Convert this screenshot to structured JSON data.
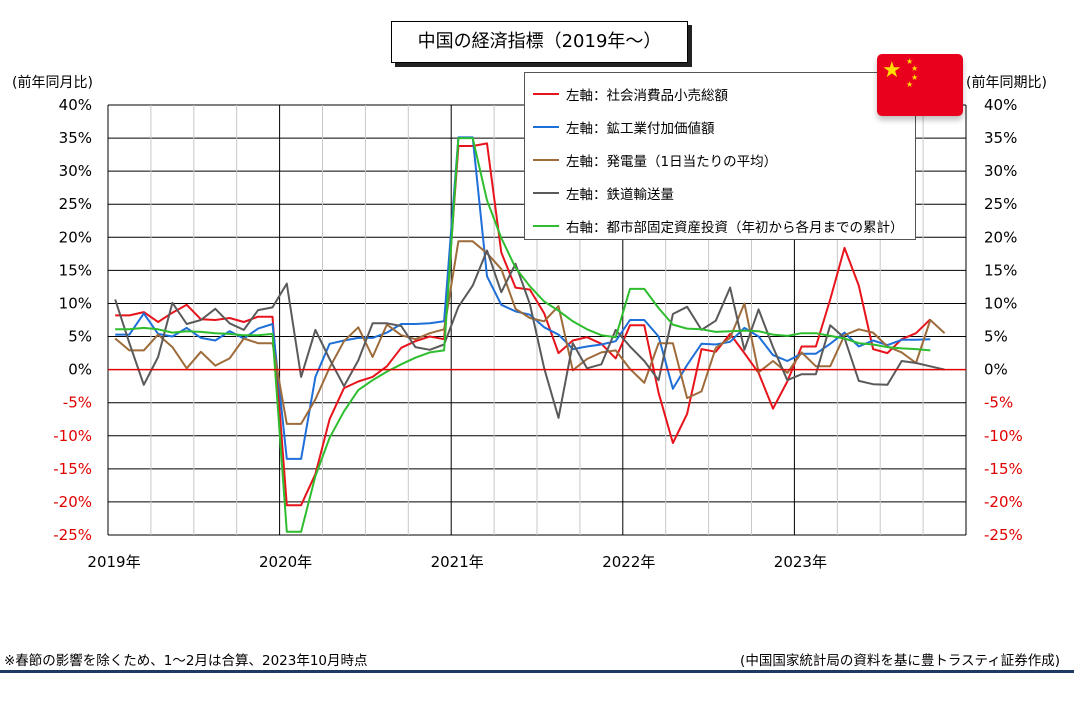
{
  "title": "中国の経済指標（2019年～）",
  "left_axis_unit": "(前年同月比)",
  "right_axis_unit": "(前年同期比)",
  "footnote_left": "※春節の影響を除くため、1～2月は合算、2023年10月時点",
  "footnote_right": "(中国国家統計局の資料を基に豊トラスティ証券作成)",
  "flag_icon": "china-flag-icon",
  "colors": {
    "retail": "#e8141c",
    "industrial": "#1f6fd8",
    "power": "#9e6b3a",
    "rail": "#5a5a5a",
    "fai": "#2ebd2e",
    "zero_line": "#e00000",
    "negative_tick": "#e00000",
    "accent_bar": "#1f3864"
  },
  "chart_data": {
    "type": "line",
    "x_labels": [
      "2019年",
      "2020年",
      "2021年",
      "2022年",
      "2023年"
    ],
    "ylim": [
      -25,
      40
    ],
    "yticks": [
      "40%",
      "35%",
      "30%",
      "25%",
      "20%",
      "15%",
      "10%",
      "5%",
      "0%",
      "-5%",
      "-10%",
      "-15%",
      "-20%",
      "-25%"
    ],
    "ytick_values": [
      40,
      35,
      30,
      25,
      20,
      15,
      10,
      5,
      0,
      -5,
      -10,
      -15,
      -20,
      -25
    ],
    "grid": true,
    "legend_position": "top-right",
    "series": [
      {
        "key": "retail",
        "name": "左軸：社会消費品小売総額",
        "axis": "left",
        "values": [
          [
            0,
            8.2
          ],
          [
            1,
            8.2
          ],
          [
            2,
            8.7
          ],
          [
            3,
            7.2
          ],
          [
            4,
            8.6
          ],
          [
            5,
            9.8
          ],
          [
            6,
            7.6
          ],
          [
            7,
            7.5
          ],
          [
            8,
            7.8
          ],
          [
            9,
            7.2
          ],
          [
            10,
            8.0
          ],
          [
            11,
            8.0
          ],
          [
            12,
            -20.5
          ],
          [
            13,
            -20.5
          ],
          [
            14,
            -15.8
          ],
          [
            15,
            -7.5
          ],
          [
            16,
            -2.8
          ],
          [
            17,
            -1.8
          ],
          [
            18,
            -1.1
          ],
          [
            19,
            0.5
          ],
          [
            20,
            3.3
          ],
          [
            21,
            4.3
          ],
          [
            22,
            5.0
          ],
          [
            23,
            4.6
          ],
          [
            24,
            33.8
          ],
          [
            25,
            33.8
          ],
          [
            26,
            34.2
          ],
          [
            27,
            17.7
          ],
          [
            28,
            12.4
          ],
          [
            29,
            12.1
          ],
          [
            30,
            8.5
          ],
          [
            31,
            2.5
          ],
          [
            32,
            4.4
          ],
          [
            33,
            4.9
          ],
          [
            34,
            3.9
          ],
          [
            35,
            1.7
          ],
          [
            36,
            6.7
          ],
          [
            37,
            6.7
          ],
          [
            38,
            -3.5
          ],
          [
            39,
            -11.1
          ],
          [
            40,
            -6.7
          ],
          [
            41,
            3.1
          ],
          [
            42,
            2.7
          ],
          [
            43,
            5.4
          ],
          [
            44,
            2.5
          ],
          [
            45,
            -0.5
          ],
          [
            46,
            -5.9
          ],
          [
            47,
            -1.8
          ],
          [
            48,
            3.5
          ],
          [
            49,
            3.5
          ],
          [
            50,
            10.6
          ],
          [
            51,
            18.4
          ],
          [
            52,
            12.7
          ],
          [
            53,
            3.1
          ],
          [
            54,
            2.5
          ],
          [
            55,
            4.6
          ],
          [
            56,
            5.5
          ],
          [
            57,
            7.6
          ]
        ]
      },
      {
        "key": "industrial",
        "name": "左軸：鉱工業付加価値額",
        "axis": "left",
        "values": [
          [
            0,
            5.3
          ],
          [
            1,
            5.3
          ],
          [
            2,
            8.5
          ],
          [
            3,
            5.4
          ],
          [
            4,
            5.0
          ],
          [
            5,
            6.3
          ],
          [
            6,
            4.8
          ],
          [
            7,
            4.4
          ],
          [
            8,
            5.8
          ],
          [
            9,
            4.7
          ],
          [
            10,
            6.2
          ],
          [
            11,
            6.9
          ],
          [
            12,
            -13.5
          ],
          [
            13,
            -13.5
          ],
          [
            14,
            -1.1
          ],
          [
            15,
            3.9
          ],
          [
            16,
            4.4
          ],
          [
            17,
            4.8
          ],
          [
            18,
            4.8
          ],
          [
            19,
            5.6
          ],
          [
            20,
            6.9
          ],
          [
            21,
            6.9
          ],
          [
            22,
            7.0
          ],
          [
            23,
            7.3
          ],
          [
            24,
            35.1
          ],
          [
            25,
            35.1
          ],
          [
            26,
            14.1
          ],
          [
            27,
            9.8
          ],
          [
            28,
            8.8
          ],
          [
            29,
            8.3
          ],
          [
            30,
            6.4
          ],
          [
            31,
            5.3
          ],
          [
            32,
            3.1
          ],
          [
            33,
            3.5
          ],
          [
            34,
            3.8
          ],
          [
            35,
            4.3
          ],
          [
            36,
            7.5
          ],
          [
            37,
            7.5
          ],
          [
            38,
            5.0
          ],
          [
            39,
            -2.9
          ],
          [
            40,
            0.7
          ],
          [
            41,
            3.9
          ],
          [
            42,
            3.8
          ],
          [
            43,
            4.2
          ],
          [
            44,
            6.3
          ],
          [
            45,
            5.0
          ],
          [
            46,
            2.2
          ],
          [
            47,
            1.3
          ],
          [
            48,
            2.4
          ],
          [
            49,
            2.4
          ],
          [
            50,
            3.9
          ],
          [
            51,
            5.6
          ],
          [
            52,
            3.5
          ],
          [
            53,
            4.4
          ],
          [
            54,
            3.7
          ],
          [
            55,
            4.5
          ],
          [
            56,
            4.5
          ],
          [
            57,
            4.6
          ]
        ]
      },
      {
        "key": "power",
        "name": "左軸：発電量（1日当たりの平均）",
        "axis": "left",
        "values": [
          [
            0,
            4.7
          ],
          [
            1,
            2.9
          ],
          [
            2,
            2.9
          ],
          [
            3,
            5.3
          ],
          [
            4,
            3.4
          ],
          [
            5,
            0.2
          ],
          [
            6,
            2.7
          ],
          [
            7,
            0.6
          ],
          [
            8,
            1.7
          ],
          [
            9,
            4.7
          ],
          [
            10,
            4.0
          ],
          [
            11,
            4.0
          ],
          [
            12,
            -8.2
          ],
          [
            13,
            -8.2
          ],
          [
            14,
            -4.5
          ],
          [
            15,
            0.3
          ],
          [
            16,
            4.3
          ],
          [
            17,
            6.4
          ],
          [
            18,
            1.9
          ],
          [
            19,
            6.8
          ],
          [
            20,
            5.2
          ],
          [
            21,
            4.6
          ],
          [
            22,
            5.5
          ],
          [
            23,
            6.1
          ],
          [
            24,
            19.4
          ],
          [
            25,
            19.4
          ],
          [
            26,
            17.6
          ],
          [
            27,
            15.2
          ],
          [
            28,
            9.2
          ],
          [
            29,
            7.8
          ],
          [
            30,
            7.3
          ],
          [
            31,
            9.6
          ],
          [
            32,
            -0.1
          ],
          [
            33,
            1.6
          ],
          [
            34,
            2.6
          ],
          [
            35,
            2.9
          ],
          [
            36,
            0.1
          ],
          [
            37,
            -2.0
          ],
          [
            38,
            4.0
          ],
          [
            39,
            4.0
          ],
          [
            40,
            -4.3
          ],
          [
            41,
            -3.3
          ],
          [
            42,
            3.3
          ],
          [
            43,
            4.8
          ],
          [
            44,
            10.0
          ],
          [
            45,
            -0.4
          ],
          [
            46,
            1.3
          ],
          [
            47,
            -0.5
          ],
          [
            48,
            2.6
          ],
          [
            49,
            0.5
          ],
          [
            50,
            0.5
          ],
          [
            51,
            5.2
          ],
          [
            52,
            6.1
          ],
          [
            53,
            5.6
          ],
          [
            54,
            3.5
          ],
          [
            55,
            2.6
          ],
          [
            56,
            1.0
          ],
          [
            57,
            7.5
          ],
          [
            58,
            5.5
          ]
        ]
      },
      {
        "key": "rail",
        "name": "左軸：鉄道輸送量",
        "axis": "left",
        "values": [
          [
            0,
            10.6
          ],
          [
            1,
            4.0
          ],
          [
            2,
            -2.3
          ],
          [
            3,
            1.9
          ],
          [
            4,
            10.1
          ],
          [
            5,
            6.9
          ],
          [
            6,
            7.5
          ],
          [
            7,
            9.2
          ],
          [
            8,
            7.0
          ],
          [
            9,
            6.0
          ],
          [
            10,
            9.0
          ],
          [
            11,
            9.4
          ],
          [
            12,
            13.0
          ],
          [
            13,
            -1.1
          ],
          [
            14,
            6.0
          ],
          [
            15,
            1.6
          ],
          [
            16,
            -2.5
          ],
          [
            17,
            1.4
          ],
          [
            18,
            7.0
          ],
          [
            19,
            7.0
          ],
          [
            20,
            6.6
          ],
          [
            21,
            3.4
          ],
          [
            22,
            3.0
          ],
          [
            23,
            3.8
          ],
          [
            24,
            9.5
          ],
          [
            25,
            12.7
          ],
          [
            26,
            18.0
          ],
          [
            27,
            11.7
          ],
          [
            28,
            16.0
          ],
          [
            29,
            9.9
          ],
          [
            30,
            0.2
          ],
          [
            31,
            -7.3
          ],
          [
            32,
            4.0
          ],
          [
            33,
            0.2
          ],
          [
            34,
            0.8
          ],
          [
            35,
            6.0
          ],
          [
            36,
            3.5
          ],
          [
            37,
            1.3
          ],
          [
            38,
            -1.6
          ],
          [
            39,
            8.4
          ],
          [
            40,
            9.5
          ],
          [
            41,
            6.0
          ],
          [
            42,
            7.4
          ],
          [
            43,
            12.4
          ],
          [
            44,
            3.0
          ],
          [
            45,
            9.1
          ],
          [
            46,
            3.4
          ],
          [
            47,
            -1.6
          ],
          [
            48,
            -0.7
          ],
          [
            49,
            -0.7
          ],
          [
            50,
            6.7
          ],
          [
            51,
            4.8
          ],
          [
            52,
            -1.7
          ],
          [
            53,
            -2.2
          ],
          [
            54,
            -2.3
          ],
          [
            55,
            1.3
          ],
          [
            56,
            1.0
          ],
          [
            57,
            0.5
          ],
          [
            58,
            0.0
          ]
        ]
      },
      {
        "key": "fai",
        "name": "右軸：都市部固定資産投資（年初から各月までの累計）",
        "axis": "right",
        "values": [
          [
            0,
            6.1
          ],
          [
            1,
            6.1
          ],
          [
            2,
            6.3
          ],
          [
            3,
            6.1
          ],
          [
            4,
            5.6
          ],
          [
            5,
            5.8
          ],
          [
            6,
            5.7
          ],
          [
            7,
            5.5
          ],
          [
            8,
            5.4
          ],
          [
            9,
            5.2
          ],
          [
            10,
            5.2
          ],
          [
            11,
            5.4
          ],
          [
            12,
            -24.5
          ],
          [
            13,
            -24.5
          ],
          [
            14,
            -16.1
          ],
          [
            15,
            -10.3
          ],
          [
            16,
            -6.3
          ],
          [
            17,
            -3.1
          ],
          [
            18,
            -1.6
          ],
          [
            19,
            -0.3
          ],
          [
            20,
            0.8
          ],
          [
            21,
            1.8
          ],
          [
            22,
            2.6
          ],
          [
            23,
            2.9
          ],
          [
            24,
            35.0
          ],
          [
            25,
            35.0
          ],
          [
            26,
            25.6
          ],
          [
            27,
            19.9
          ],
          [
            28,
            15.4
          ],
          [
            29,
            12.6
          ],
          [
            30,
            10.3
          ],
          [
            31,
            8.9
          ],
          [
            32,
            7.3
          ],
          [
            33,
            6.1
          ],
          [
            34,
            5.2
          ],
          [
            35,
            4.9
          ],
          [
            36,
            12.2
          ],
          [
            37,
            12.2
          ],
          [
            38,
            9.3
          ],
          [
            39,
            6.8
          ],
          [
            40,
            6.2
          ],
          [
            41,
            6.1
          ],
          [
            42,
            5.7
          ],
          [
            43,
            5.8
          ],
          [
            44,
            5.9
          ],
          [
            45,
            5.8
          ],
          [
            46,
            5.3
          ],
          [
            47,
            5.1
          ],
          [
            48,
            5.5
          ],
          [
            49,
            5.5
          ],
          [
            50,
            5.1
          ],
          [
            51,
            4.7
          ],
          [
            52,
            4.0
          ],
          [
            53,
            3.8
          ],
          [
            54,
            3.4
          ],
          [
            55,
            3.2
          ],
          [
            56,
            3.1
          ],
          [
            57,
            2.9
          ]
        ]
      }
    ]
  }
}
